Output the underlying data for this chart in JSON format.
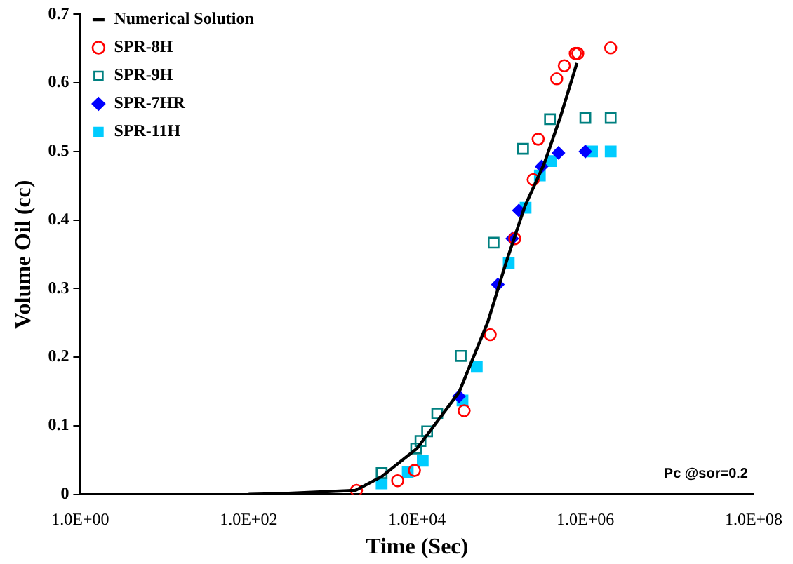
{
  "chart_data": {
    "type": "scatter",
    "xlabel": "Time (Sec)",
    "ylabel": "Volume Oil (cc)",
    "log": "x",
    "xlim": [
      1,
      100000000
    ],
    "xticks": [
      {
        "value": 1,
        "label": "1.0E+00"
      },
      {
        "value": 100,
        "label": "1.0E+02"
      },
      {
        "value": 10000,
        "label": "1.0E+04"
      },
      {
        "value": 1000000,
        "label": "1.0E+06"
      },
      {
        "value": 100000000,
        "label": "1.0E+08"
      }
    ],
    "ylim": [
      0,
      0.7
    ],
    "yticks": [
      0,
      0.1,
      0.2,
      0.3,
      0.4,
      0.5,
      0.6,
      0.7
    ],
    "grid": false,
    "legend": "top left",
    "annotations": [
      "Pc @sor=0.2"
    ],
    "series": [
      {
        "name": "Numerical Solution",
        "type": "line",
        "marker": "none",
        "line_style": "solid",
        "color": "#000000",
        "x": [
          100,
          240,
          1860,
          3800,
          10000,
          31600,
          69200,
          115000,
          191000,
          324000,
          501000,
          794000
        ],
        "values": [
          0,
          0.001,
          0.006,
          0.026,
          0.067,
          0.149,
          0.251,
          0.339,
          0.42,
          0.482,
          0.549,
          0.629
        ]
      },
      {
        "name": "SPR-8H",
        "marker": "circle",
        "color": "#ff0000",
        "x": [
          1910,
          5890,
          9330,
          36300,
          74100,
          145000,
          240000,
          275000,
          457000,
          562000,
          759000,
          813000,
          2000000
        ],
        "values": [
          0.006,
          0.02,
          0.035,
          0.122,
          0.233,
          0.373,
          0.459,
          0.518,
          0.606,
          0.625,
          0.643,
          0.643,
          0.651
        ]
      },
      {
        "name": "SPR-9H",
        "marker": "square",
        "color": "#008080",
        "x": [
          3800,
          9770,
          11000,
          13200,
          17400,
          33100,
          81300,
          182000,
          380000,
          1000000,
          2000000
        ],
        "values": [
          0.031,
          0.067,
          0.078,
          0.092,
          0.118,
          0.202,
          0.367,
          0.504,
          0.547,
          0.549,
          0.549
        ]
      },
      {
        "name": "SPR-7HR",
        "marker": "diamond",
        "color": "#0000ff",
        "x": [
          31600,
          91200,
          135000,
          162000,
          302000,
          479000,
          1000000
        ],
        "values": [
          0.143,
          0.306,
          0.373,
          0.414,
          0.478,
          0.498,
          0.5
        ]
      },
      {
        "name": "SPR-11H",
        "marker": "square",
        "color": "#00ccff",
        "x": [
          3800,
          7760,
          11700,
          34700,
          51300,
          123000,
          195000,
          288000,
          389000,
          1200000,
          2000000
        ],
        "values": [
          0.016,
          0.033,
          0.049,
          0.137,
          0.186,
          0.337,
          0.418,
          0.465,
          0.486,
          0.5,
          0.5
        ]
      }
    ]
  }
}
